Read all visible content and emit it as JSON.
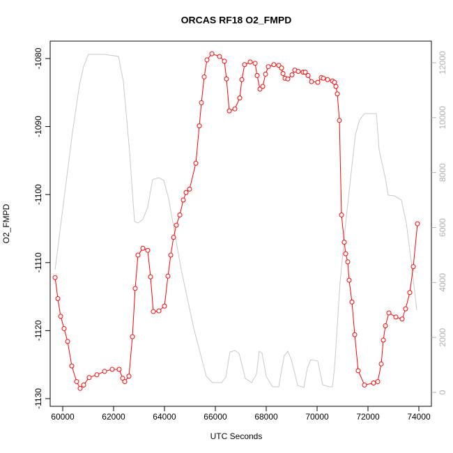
{
  "chart_data": {
    "type": "line",
    "title": "ORCAS RF18 O2_FMPD",
    "x_label": "UTC Seconds",
    "y_label": "O2_FMPD",
    "xlim": [
      59507,
      74493
    ],
    "ylim": [
      -1131.13,
      -1077.44
    ],
    "y2lim": [
      -507,
      12786
    ],
    "xticks": [
      60000,
      62000,
      64000,
      66000,
      68000,
      70000,
      72000,
      74000
    ],
    "yticks": [
      -1130,
      -1120,
      -1110,
      -1100,
      -1090,
      -1080
    ],
    "y2ticks": [
      0,
      2000,
      4000,
      6000,
      8000,
      10000,
      12000
    ],
    "series": [
      {
        "color": "#ff0000",
        "marker": "circle",
        "x": [
          59700,
          59808,
          59918,
          60055,
          60192,
          60356,
          60548,
          60685,
          60822,
          61041,
          61342,
          61644,
          61945,
          62219,
          62356,
          62438,
          62603,
          62740,
          62849,
          62959,
          63151,
          63342,
          63452,
          63562,
          63781,
          64000,
          64137,
          64247,
          64356,
          64466,
          64603,
          64740,
          64849,
          64986,
          65233,
          65370,
          65452,
          65562,
          65671,
          65863,
          66164,
          66356,
          66438,
          66548,
          66767,
          66959,
          67041,
          67151,
          67370,
          67562,
          67644,
          67753,
          67863,
          67973,
          68082,
          68301,
          68493,
          68603,
          68658,
          68740,
          68849,
          69014,
          69123,
          69260,
          69452,
          69534,
          69644,
          69781,
          70027,
          70164,
          70247,
          70411,
          70603,
          70685,
          70740,
          70795,
          70877,
          70959,
          71068,
          71123,
          71205,
          71260,
          71370,
          71479,
          71616,
          71863,
          72219,
          72384,
          72521,
          72603,
          72685,
          72822,
          73096,
          73342,
          73479,
          73644,
          73781,
          73945
        ],
        "values": [
          -1112.2,
          -1115.3,
          -1117.9,
          -1119.7,
          -1121.6,
          -1125.2,
          -1127.5,
          -1128.5,
          -1128.0,
          -1126.9,
          -1126.5,
          -1126.0,
          -1125.7,
          -1125.7,
          -1127.0,
          -1127.5,
          -1126.7,
          -1120.9,
          -1113.8,
          -1108.9,
          -1107.9,
          -1108.2,
          -1112.1,
          -1117.2,
          -1117.1,
          -1116.4,
          -1112.0,
          -1108.9,
          -1106.3,
          -1104.5,
          -1103.0,
          -1100.8,
          -1099.7,
          -1099.2,
          -1095.4,
          -1089.9,
          -1086.5,
          -1082.7,
          -1080.2,
          -1079.3,
          -1079.7,
          -1080.4,
          -1083.0,
          -1087.7,
          -1087.4,
          -1085.8,
          -1083.1,
          -1080.9,
          -1080.5,
          -1080.7,
          -1082.5,
          -1084.5,
          -1084.1,
          -1082.3,
          -1081.2,
          -1080.9,
          -1081.0,
          -1081.4,
          -1082.2,
          -1082.9,
          -1083.0,
          -1082.4,
          -1081.7,
          -1081.9,
          -1082.0,
          -1082.0,
          -1082.5,
          -1083.4,
          -1083.5,
          -1082.8,
          -1082.9,
          -1083.1,
          -1083.3,
          -1083.5,
          -1084.1,
          -1085.2,
          -1089.1,
          -1103.0,
          -1107.0,
          -1108.7,
          -1109.9,
          -1112.6,
          -1115.8,
          -1120.6,
          -1125.9,
          -1128.0,
          -1127.7,
          -1127.5,
          -1124.9,
          -1121.4,
          -1119.3,
          -1117.4,
          -1118.0,
          -1118.3,
          -1116.8,
          -1114.4,
          -1110.6,
          -1104.3
        ]
      },
      {
        "color": "#c8c8c8",
        "axis": "y2",
        "x": [
          59700,
          60000,
          60384,
          60658,
          60822,
          61014,
          61644,
          62192,
          62384,
          62630,
          62822,
          62959,
          63151,
          63342,
          63534,
          63589,
          63781,
          63973,
          64164,
          64658,
          65151,
          65644,
          65890,
          66247,
          66411,
          66575,
          66767,
          66932,
          67178,
          67425,
          67616,
          67726,
          67836,
          68000,
          68247,
          68493,
          68575,
          68712,
          68849,
          68986,
          69151,
          69233,
          69479,
          69616,
          69753,
          70027,
          70219,
          70466,
          70603,
          70685,
          70904,
          71123,
          71507,
          71671,
          71863,
          72082,
          72329,
          72438,
          72685,
          72795,
          73041,
          73315,
          73507,
          73699,
          73918
        ],
        "values": [
          4465,
          6672,
          9463,
          11188,
          11873,
          12304,
          12304,
          12228,
          11315,
          8753,
          6216,
          6165,
          6292,
          6749,
          7738,
          7763,
          7814,
          7712,
          7053,
          4465,
          2334,
          584,
          355,
          355,
          558,
          1472,
          1522,
          1421,
          507,
          355,
          660,
          1497,
          1421,
          584,
          203,
          203,
          660,
          1345,
          1497,
          1192,
          584,
          254,
          178,
          888,
          1192,
          1142,
          279,
          203,
          203,
          888,
          4008,
          6165,
          9387,
          9920,
          10148,
          10148,
          10148,
          8829,
          7789,
          7180,
          7154,
          7002,
          6165,
          4769,
          2994
        ]
      }
    ]
  }
}
